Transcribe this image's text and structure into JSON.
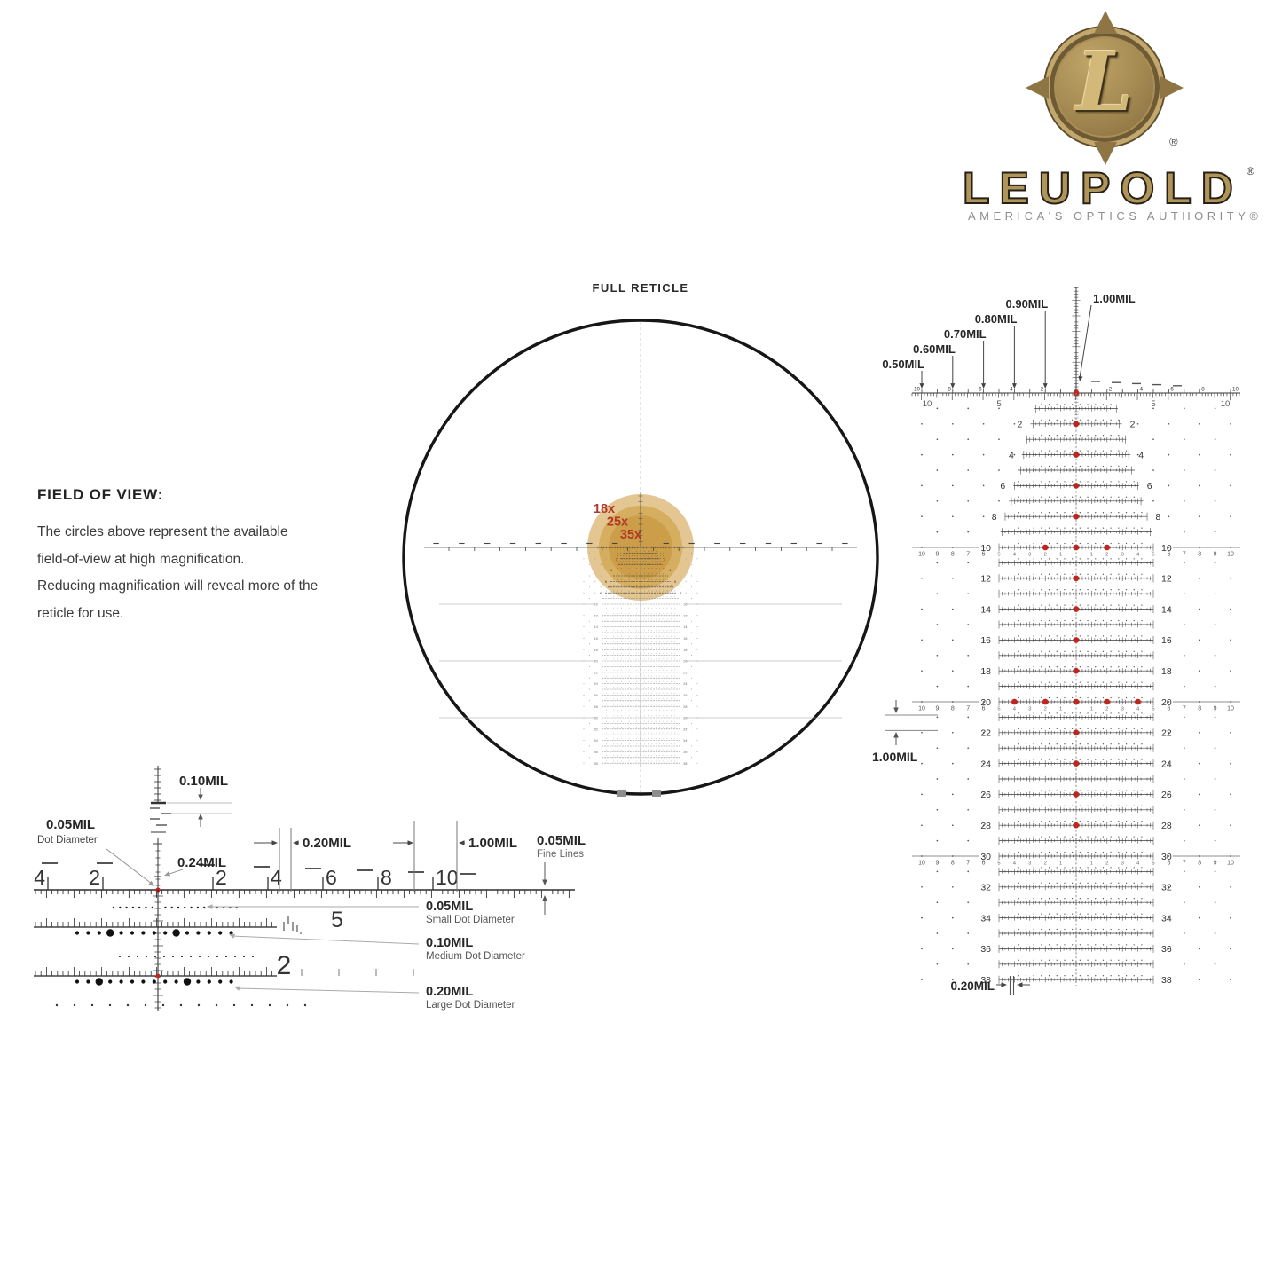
{
  "logo": {
    "letter": "L",
    "registered": "®",
    "brand": "LEUPOLD",
    "tagline": "AMERICA'S OPTICS AUTHORITY®"
  },
  "full_reticle": {
    "title": "FULL RETICLE",
    "magnifications": [
      "18x",
      "25x",
      "35x"
    ]
  },
  "fov": {
    "heading": "FIELD OF VIEW:",
    "lines": [
      "The circles above represent the available",
      "field-of-view at high magnification.",
      "Reducing magnification will reveal more of the",
      "reticle for use."
    ]
  },
  "zoom_diagram": {
    "scale_left": [
      "4",
      "2"
    ],
    "scale_right": [
      "2",
      "4",
      "6",
      "8",
      "10"
    ],
    "ann_tick": "0.10MIL",
    "ann_dot": "0.05MIL",
    "ann_dot_sub": "Dot Diameter",
    "ann_center": "0.24MIL",
    "ann_gap": "0.20MIL",
    "ann_mil": "1.00MIL",
    "ann_fine": "0.05MIL",
    "ann_fine_sub": "Fine Lines",
    "ann_small": "0.05MIL",
    "ann_small_sub": "Small Dot Diameter",
    "ann_medium": "0.10MIL",
    "ann_medium_sub": "Medium Dot Diameter",
    "ann_large": "0.20MIL",
    "ann_large_sub": "Large Dot Diameter",
    "big_numbers": [
      "5",
      "2"
    ]
  },
  "tree_diagram": {
    "mil_labels": [
      "0.50MIL",
      "0.60MIL",
      "0.70MIL",
      "0.80MIL",
      "0.90MIL"
    ],
    "top_label": "1.00MIL",
    "top_scale": [
      "10",
      "8",
      "6",
      "4",
      "2"
    ],
    "side_scale": [
      "10",
      "5"
    ],
    "row_numbers": [
      2,
      4,
      6,
      8,
      10,
      12,
      14,
      16,
      18,
      20,
      22,
      24,
      26,
      28,
      30,
      32,
      34,
      36,
      38
    ],
    "wide_rows": [
      10,
      20,
      30
    ],
    "red_dot_rows": [
      2,
      4,
      6,
      8,
      10,
      12,
      14,
      16,
      18,
      20,
      22,
      24,
      26,
      28
    ],
    "wide_extra_dot_offsets": {
      "10": [
        -2,
        2
      ],
      "20": [
        -4,
        -2,
        2,
        4
      ]
    },
    "wide_inner_numbers": [
      "1",
      "2",
      "3",
      "4",
      "5"
    ],
    "wide_outer_numbers": [
      "6",
      "7",
      "8",
      "9",
      "10"
    ],
    "left_annotation": "1.00MIL",
    "bottom_annotation": "0.20MIL"
  },
  "colors": {
    "red": "#c3241d",
    "gold": "#d2a75a",
    "text_dark": "#262626",
    "annotation_gray": "#999999",
    "brand_gold": "#b0955a",
    "tagline_gray": "#8e8e8e",
    "line_dark": "#3c3c3c"
  }
}
